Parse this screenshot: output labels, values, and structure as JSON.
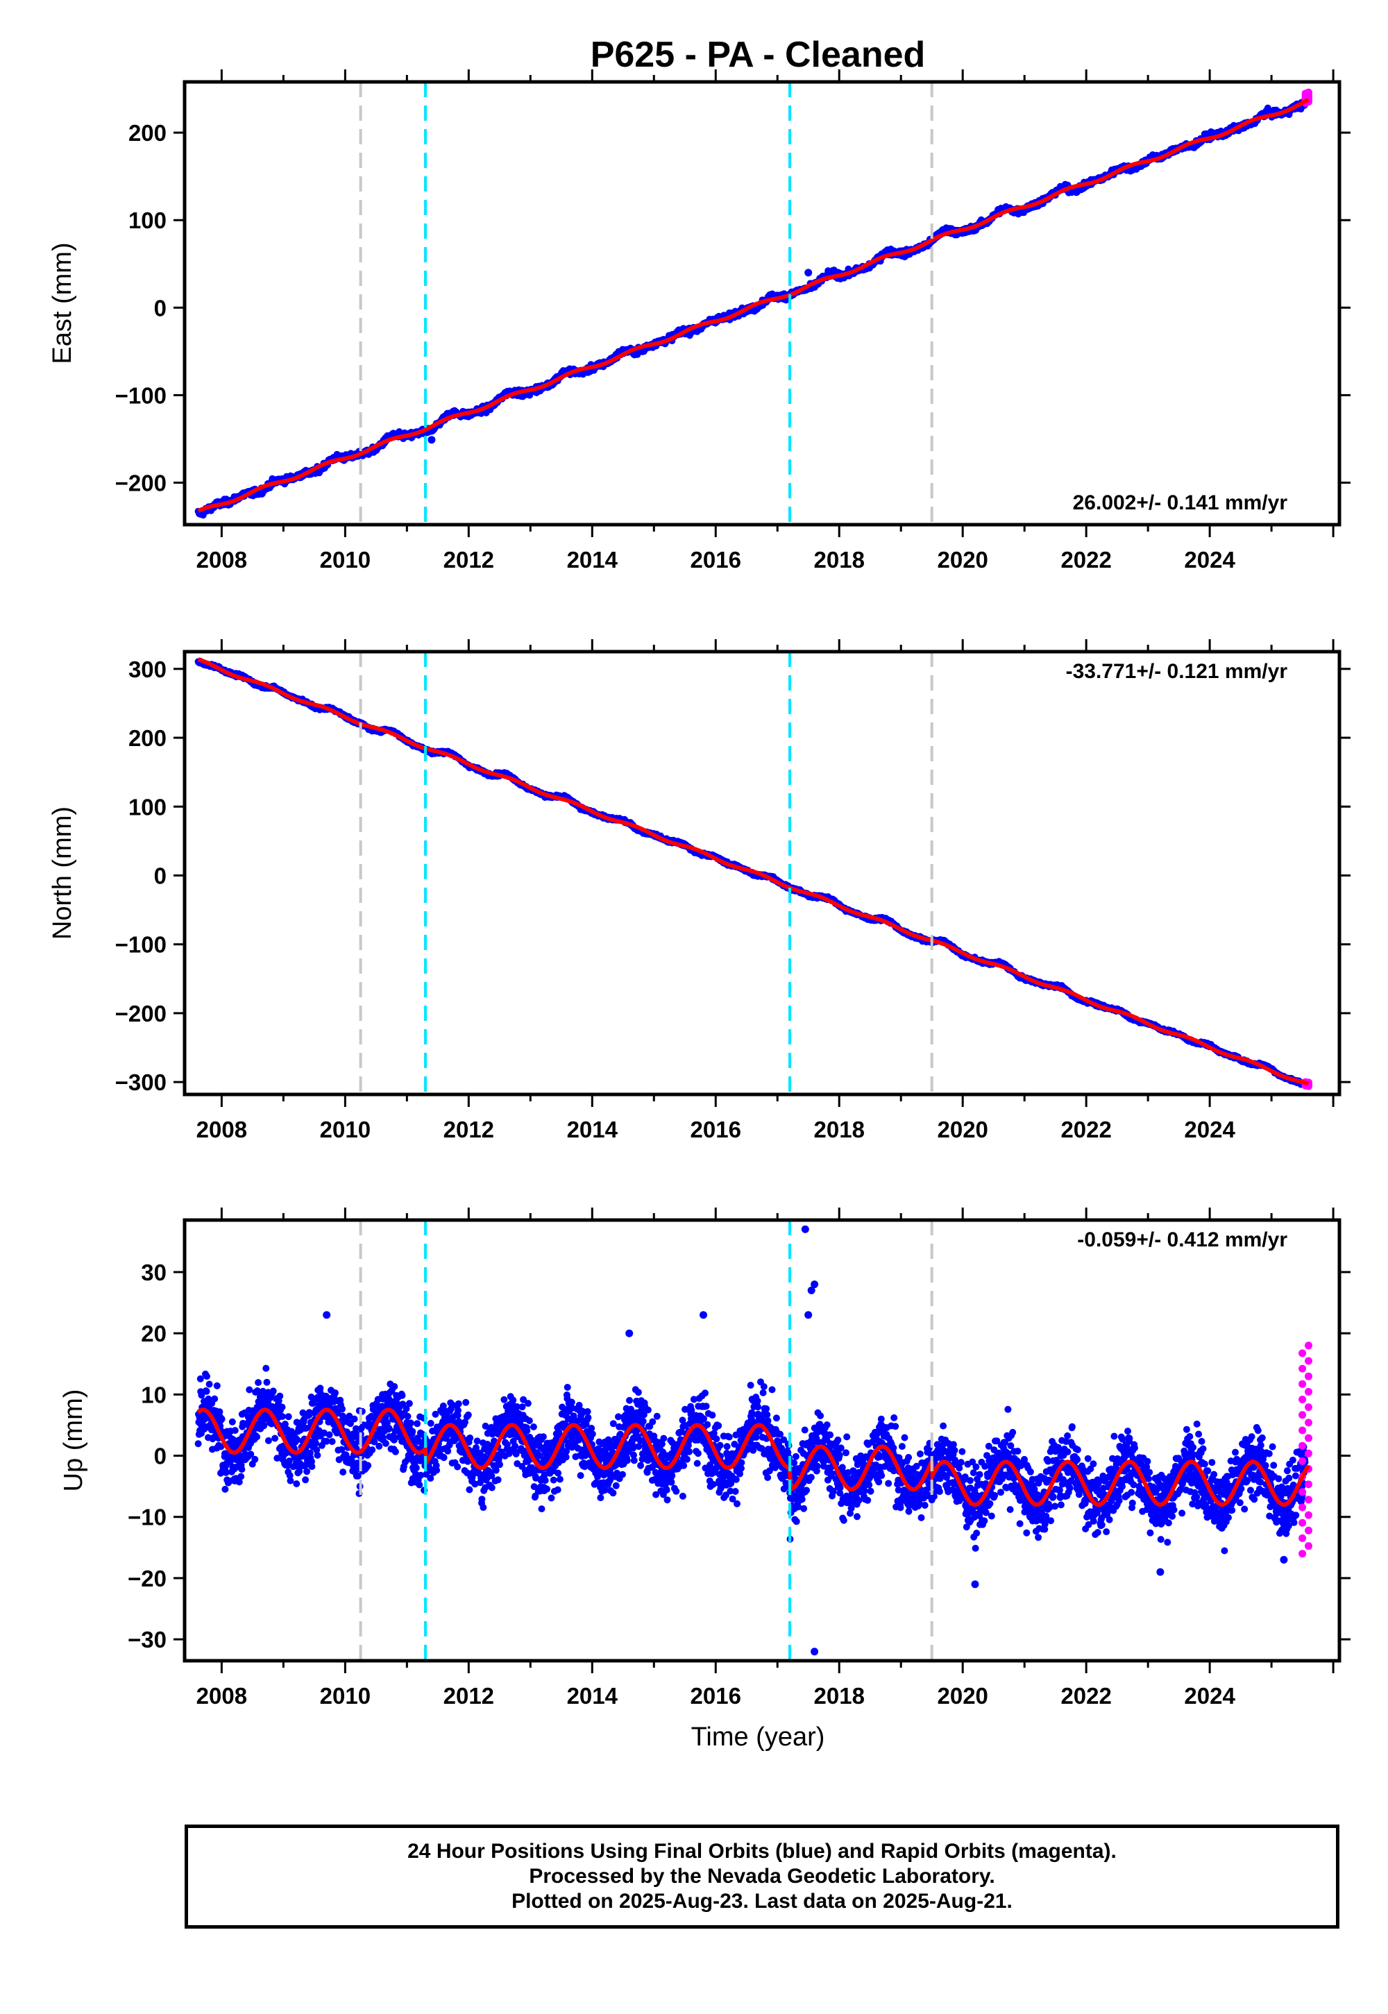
{
  "title": "P625  - PA - Cleaned",
  "colors": {
    "final_orbits": "#0000ff",
    "rapid_orbits": "#ff00ff",
    "model": "#ff0000",
    "gray_line": "#c8c8c8",
    "cyan_line": "#00e5ff"
  },
  "x_axis": {
    "label": "Time (year)",
    "ticks": [
      "2008",
      "2010",
      "2012",
      "2014",
      "2016",
      "2018",
      "2020",
      "2022",
      "2024"
    ],
    "range": [
      2007.4,
      2026.1
    ]
  },
  "footer": {
    "line1": "24 Hour Positions Using Final Orbits (blue) and Rapid Orbits (magenta).",
    "line2": "Processed by the Nevada Geodetic Laboratory.",
    "line3": "Plotted on 2025-Aug-23. Last data on 2025-Aug-21."
  },
  "chart_data": [
    {
      "type": "scatter",
      "ylabel": "East (mm)",
      "rate": "26.002+/- 0.141 mm/yr",
      "ylim": [
        -248,
        258
      ],
      "yticks": [
        -200,
        -100,
        0,
        100,
        200
      ],
      "ytick_labels": [
        "−200",
        "−100",
        "0",
        "100",
        "200"
      ],
      "vlines_gray": [
        2010.25,
        2019.5
      ],
      "vlines_cyan": [
        2011.3,
        2017.2
      ],
      "model_trend": {
        "x": [
          2007.62,
          2025.6
        ],
        "y": [
          -234,
          236
        ]
      },
      "annual_amplitude": 2,
      "noise": 2.5,
      "rapid_points": {
        "x": [
          2025.55,
          2025.6
        ],
        "y": [
          234,
          246
        ]
      },
      "outliers": [
        {
          "x": 2017.5,
          "y": 40
        },
        {
          "x": 2011.4,
          "y": -151
        }
      ]
    },
    {
      "type": "scatter",
      "ylabel": "North (mm)",
      "rate": "-33.771+/- 0.121 mm/yr",
      "ylim": [
        -318,
        325
      ],
      "yticks": [
        -300,
        -200,
        -100,
        0,
        100,
        200,
        300
      ],
      "ytick_labels": [
        "−300",
        "−200",
        "−100",
        "0",
        "100",
        "200",
        "300"
      ],
      "vlines_gray": [
        2010.25,
        2019.5
      ],
      "vlines_cyan": [
        2011.3,
        2017.2
      ],
      "model_trend": {
        "x": [
          2007.62,
          2025.6
        ],
        "y": [
          312,
          -304
        ]
      },
      "annual_amplitude": 2,
      "noise": 1.6,
      "rapid_points": {
        "x": [
          2025.55,
          2025.6
        ],
        "y": [
          -300,
          -306
        ]
      },
      "outliers": []
    },
    {
      "type": "scatter",
      "ylabel": "Up (mm)",
      "rate": "-0.059+/- 0.412 mm/yr",
      "ylim": [
        -33.5,
        38.5
      ],
      "yticks": [
        -30,
        -20,
        -10,
        0,
        10,
        20,
        30
      ],
      "ytick_labels": [
        "−30",
        "−20",
        "−10",
        "0",
        "10",
        "20",
        "30"
      ],
      "vlines_gray": [
        2010.25,
        2019.5
      ],
      "vlines_cyan": [
        2011.3,
        2017.2
      ],
      "model_offsets": [
        {
          "from": 2007.62,
          "to": 2011.3,
          "mean": 4
        },
        {
          "from": 2011.3,
          "to": 2017.2,
          "mean": 1.5
        },
        {
          "from": 2017.2,
          "to": 2019.5,
          "mean": -2
        },
        {
          "from": 2019.5,
          "to": 2025.6,
          "mean": -4.5
        }
      ],
      "annual_amplitude": 3.5,
      "noise": 3.8,
      "rapid_points": {
        "x": [
          2025.5,
          2025.6
        ],
        "y": [
          -16,
          18
        ]
      },
      "outliers": [
        {
          "x": 2017.45,
          "y": 37
        },
        {
          "x": 2017.6,
          "y": 28
        },
        {
          "x": 2017.55,
          "y": 27
        },
        {
          "x": 2017.5,
          "y": 23
        },
        {
          "x": 2017.6,
          "y": -32
        },
        {
          "x": 2009.7,
          "y": 23
        },
        {
          "x": 2015.8,
          "y": 23
        },
        {
          "x": 2014.6,
          "y": 20
        },
        {
          "x": 2020.2,
          "y": -21
        },
        {
          "x": 2023.2,
          "y": -19
        },
        {
          "x": 2025.2,
          "y": -17
        }
      ]
    }
  ]
}
